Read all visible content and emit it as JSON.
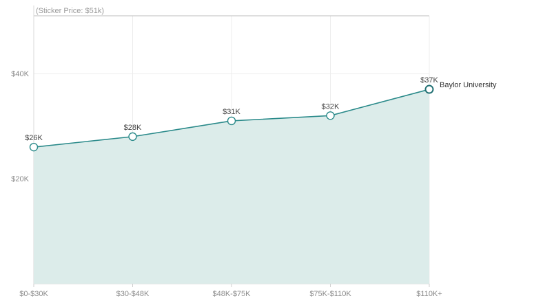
{
  "chart_data": {
    "type": "area",
    "categories": [
      "$0-$30K",
      "$30-$48K",
      "$48K-$75K",
      "$75K-$110K",
      "$110K+"
    ],
    "series": [
      {
        "name": "Baylor University",
        "values": [
          26,
          28,
          31,
          32,
          37
        ],
        "data_labels": [
          "$26K",
          "$28K",
          "$31K",
          "$32K",
          "$37K"
        ],
        "color": "#2a8a8a",
        "fill": "#dcecea"
      }
    ],
    "y_ticks": [
      {
        "value": 20,
        "label": "$20K"
      },
      {
        "value": 40,
        "label": "$40K"
      }
    ],
    "ylim": [
      0,
      51
    ],
    "reference_line": {
      "value": 51,
      "label": "(Sticker Price: $51k)"
    },
    "grid": true,
    "xlabel": "",
    "ylabel": ""
  }
}
